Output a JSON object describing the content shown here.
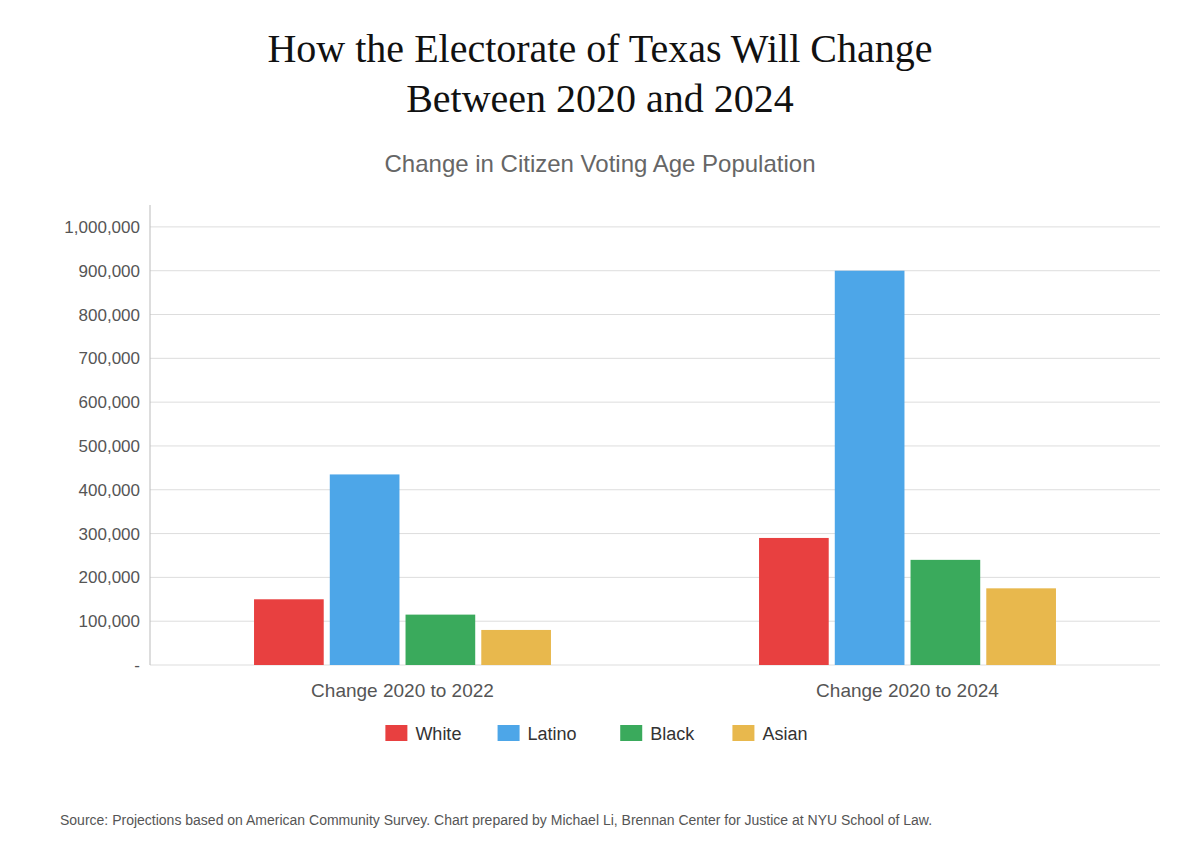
{
  "chart_data": {
    "type": "bar",
    "title": "How the Electorate of Texas Will Change\nBetween 2020 and 2024",
    "subtitle": "Change in Citizen Voting Age Population",
    "categories": [
      "Change 2020 to 2022",
      "Change 2020 to 2024"
    ],
    "series": [
      {
        "name": "White",
        "color": "#e84040",
        "values": [
          150000,
          290000
        ]
      },
      {
        "name": "Latino",
        "color": "#4da6e8",
        "values": [
          435000,
          900000
        ]
      },
      {
        "name": "Black",
        "color": "#3aaa5c",
        "values": [
          115000,
          240000
        ]
      },
      {
        "name": "Asian",
        "color": "#e8b84d",
        "values": [
          80000,
          175000
        ]
      }
    ],
    "ylim": [
      0,
      1050000
    ],
    "yticks": [
      {
        "value": 0,
        "label": "-"
      },
      {
        "value": 100000,
        "label": "100,000"
      },
      {
        "value": 200000,
        "label": "200,000"
      },
      {
        "value": 300000,
        "label": "300,000"
      },
      {
        "value": 400000,
        "label": "400,000"
      },
      {
        "value": 500000,
        "label": "500,000"
      },
      {
        "value": 600000,
        "label": "600,000"
      },
      {
        "value": 700000,
        "label": "700,000"
      },
      {
        "value": 800000,
        "label": "800,000"
      },
      {
        "value": 900000,
        "label": "900,000"
      },
      {
        "value": 1000000,
        "label": "1,000,000"
      }
    ],
    "grid": true,
    "legend": "bottom",
    "annotations": [
      "Source: Projections based on American Community Survey. Chart prepared by Michael Li, Brennan Center for Justice at NYU School of Law."
    ]
  }
}
